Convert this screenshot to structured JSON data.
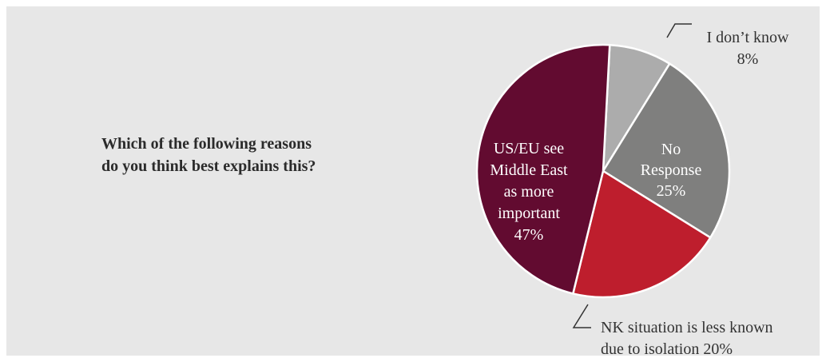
{
  "question": {
    "text": "Which of the following reasons\ndo you think best explains this?"
  },
  "chart_data": {
    "type": "pie",
    "title": "",
    "start_angle_deg": 3,
    "slices": [
      {
        "key": "dont-know",
        "label_lines": [
          "I don’t know",
          "8%"
        ],
        "value": 8,
        "color": "#acacac",
        "label_position": "outside-top-right",
        "label_color": "#333333"
      },
      {
        "key": "no-response",
        "label_lines": [
          "No",
          "Response",
          "25%"
        ],
        "value": 25,
        "color": "#7f7f7e",
        "label_position": "inside",
        "label_color": "#ffffff"
      },
      {
        "key": "nk-situation",
        "label_lines": [
          "NK situation is less known",
          "due to isolation 20%"
        ],
        "value": 20,
        "color": "#be1e2d",
        "label_position": "outside-bottom",
        "label_color": "#333333"
      },
      {
        "key": "middle-east",
        "label_lines": [
          "US/EU see",
          "Middle East",
          "as more",
          "important",
          "47%"
        ],
        "value": 47,
        "color": "#620b30",
        "label_position": "inside",
        "label_color": "#ffffff"
      }
    ],
    "slice_border_color": "#ffffff",
    "leader_line_color": "#333333"
  }
}
